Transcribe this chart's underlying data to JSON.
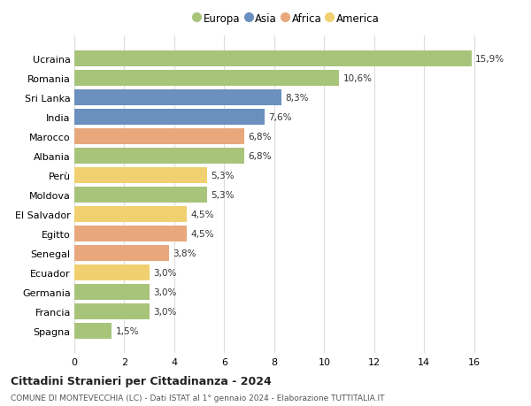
{
  "countries": [
    "Ucraina",
    "Romania",
    "Sri Lanka",
    "India",
    "Marocco",
    "Albania",
    "Perù",
    "Moldova",
    "El Salvador",
    "Egitto",
    "Senegal",
    "Ecuador",
    "Germania",
    "Francia",
    "Spagna"
  ],
  "values": [
    15.9,
    10.6,
    8.3,
    7.6,
    6.8,
    6.8,
    5.3,
    5.3,
    4.5,
    4.5,
    3.8,
    3.0,
    3.0,
    3.0,
    1.5
  ],
  "continents": [
    "Europa",
    "Europa",
    "Asia",
    "Asia",
    "Africa",
    "Europa",
    "America",
    "Europa",
    "America",
    "Africa",
    "Africa",
    "America",
    "Europa",
    "Europa",
    "Europa"
  ],
  "colors": {
    "Europa": "#a8c47a",
    "Asia": "#6b8fbe",
    "Africa": "#e8a87c",
    "America": "#f0d070"
  },
  "legend_order": [
    "Europa",
    "Asia",
    "Africa",
    "America"
  ],
  "xlim": [
    0,
    17
  ],
  "xticks": [
    0,
    2,
    4,
    6,
    8,
    10,
    12,
    14,
    16
  ],
  "title": "Cittadini Stranieri per Cittadinanza - 2024",
  "subtitle": "COMUNE DI MONTEVECCHIA (LC) - Dati ISTAT al 1° gennaio 2024 - Elaborazione TUTTITALIA.IT",
  "bg_color": "#ffffff",
  "grid_color": "#dddddd"
}
